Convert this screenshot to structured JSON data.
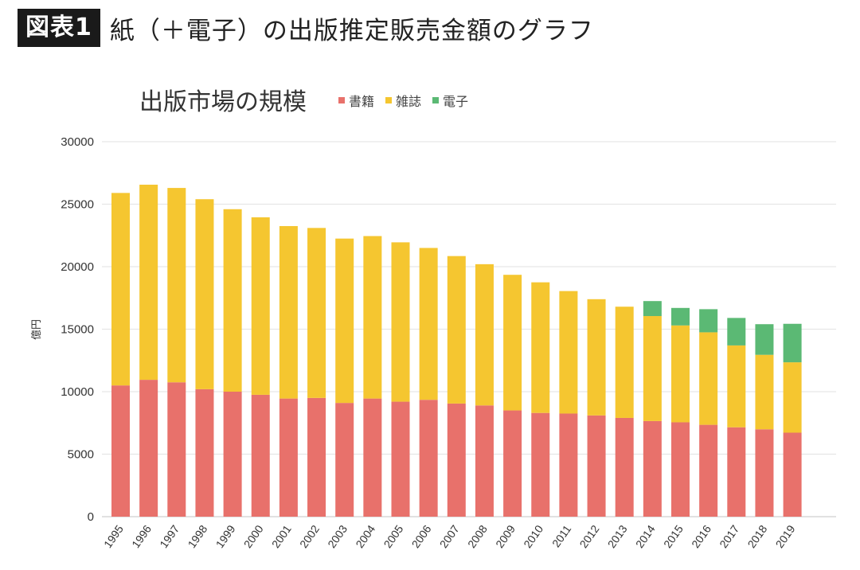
{
  "header": {
    "badge": "図表1",
    "title": "紙（＋電子）の出版推定販売金額のグラフ"
  },
  "chart_data": {
    "type": "bar",
    "stacked": true,
    "title": "出版市場の規模",
    "xlabel": "",
    "ylabel": "億円",
    "ylim": [
      0,
      30000
    ],
    "yticks": [
      0,
      5000,
      10000,
      15000,
      20000,
      25000,
      30000
    ],
    "grid": true,
    "legend_position": "top",
    "categories": [
      "1995",
      "1996",
      "1997",
      "1998",
      "1999",
      "2000",
      "2001",
      "2002",
      "2003",
      "2004",
      "2005",
      "2006",
      "2007",
      "2008",
      "2009",
      "2010",
      "2011",
      "2012",
      "2013",
      "2014",
      "2015",
      "2016",
      "2017",
      "2018",
      "2019"
    ],
    "series": [
      {
        "name": "書籍",
        "color": "#e8716b",
        "values": [
          10500,
          10950,
          10750,
          10200,
          10000,
          9750,
          9450,
          9500,
          9100,
          9450,
          9200,
          9350,
          9050,
          8900,
          8500,
          8300,
          8250,
          8100,
          7900,
          7650,
          7550,
          7350,
          7150,
          6990,
          6720
        ]
      },
      {
        "name": "雑誌",
        "color": "#f5c630",
        "values": [
          15400,
          15610,
          15550,
          15200,
          14600,
          14200,
          13800,
          13600,
          13150,
          13000,
          12750,
          12150,
          11800,
          11300,
          10850,
          10450,
          9800,
          9300,
          8900,
          8400,
          7750,
          7400,
          6550,
          5960,
          5630
        ]
      },
      {
        "name": "電子",
        "color": "#5bb974",
        "values": [
          0,
          0,
          0,
          0,
          0,
          0,
          0,
          0,
          0,
          0,
          0,
          0,
          0,
          0,
          0,
          0,
          0,
          0,
          0,
          1200,
          1400,
          1850,
          2200,
          2450,
          3080
        ]
      }
    ]
  }
}
